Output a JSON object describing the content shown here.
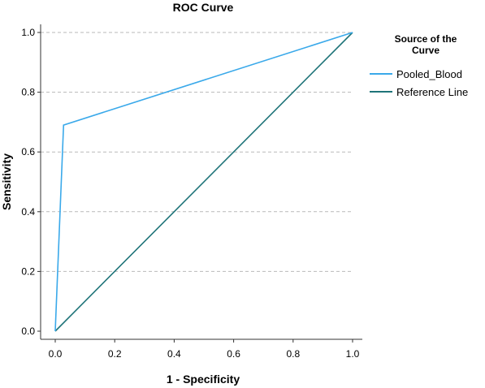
{
  "chart_data": {
    "type": "line",
    "title": "ROC Curve",
    "xlabel": "1 - Specificity",
    "ylabel": "Sensitivity",
    "xlim": [
      0,
      1
    ],
    "ylim": [
      0,
      1
    ],
    "x_ticks": [
      "0.0",
      "0.2",
      "0.4",
      "0.6",
      "0.8",
      "1.0"
    ],
    "y_ticks": [
      "0.0",
      "0.2",
      "0.4",
      "0.6",
      "0.8",
      "1.0"
    ],
    "grid": "horizontal dashed",
    "legend": {
      "title_line1": "Source of the",
      "title_line2": "Curve",
      "placement": "right"
    },
    "series": [
      {
        "name": "Pooled_Blood",
        "color": "#3aa9ea",
        "points": [
          [
            0.0,
            0.0
          ],
          [
            0.028,
            0.69
          ],
          [
            1.0,
            1.0
          ]
        ]
      },
      {
        "name": "Reference Line",
        "color": "#1f7479",
        "points": [
          [
            0.0,
            0.0
          ],
          [
            1.0,
            1.0
          ]
        ]
      }
    ]
  }
}
